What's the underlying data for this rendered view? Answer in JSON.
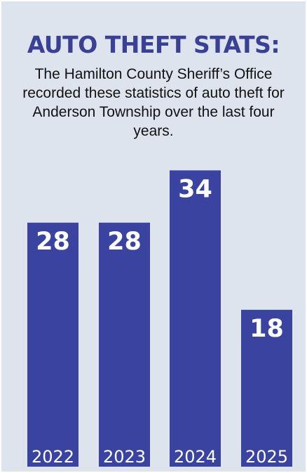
{
  "title": "AUTO THEFT STATS:",
  "description": "The Hamilton County Sheriff’s Office recorded these statistics of auto theft for Anderson Township over the last four years.",
  "colors": {
    "background": "#dde4ee",
    "bar": "#3a44a0",
    "title": "#3a4094",
    "bar_text": "#ffffff"
  },
  "chart_data": {
    "type": "bar",
    "categories": [
      "2022",
      "2023",
      "2024",
      "2025"
    ],
    "values": [
      28,
      28,
      34,
      18
    ],
    "data_labels": [
      "28",
      "28",
      "34",
      "18"
    ],
    "title": "AUTO THEFT STATS:",
    "xlabel": "",
    "ylabel": "",
    "grid": false
  }
}
